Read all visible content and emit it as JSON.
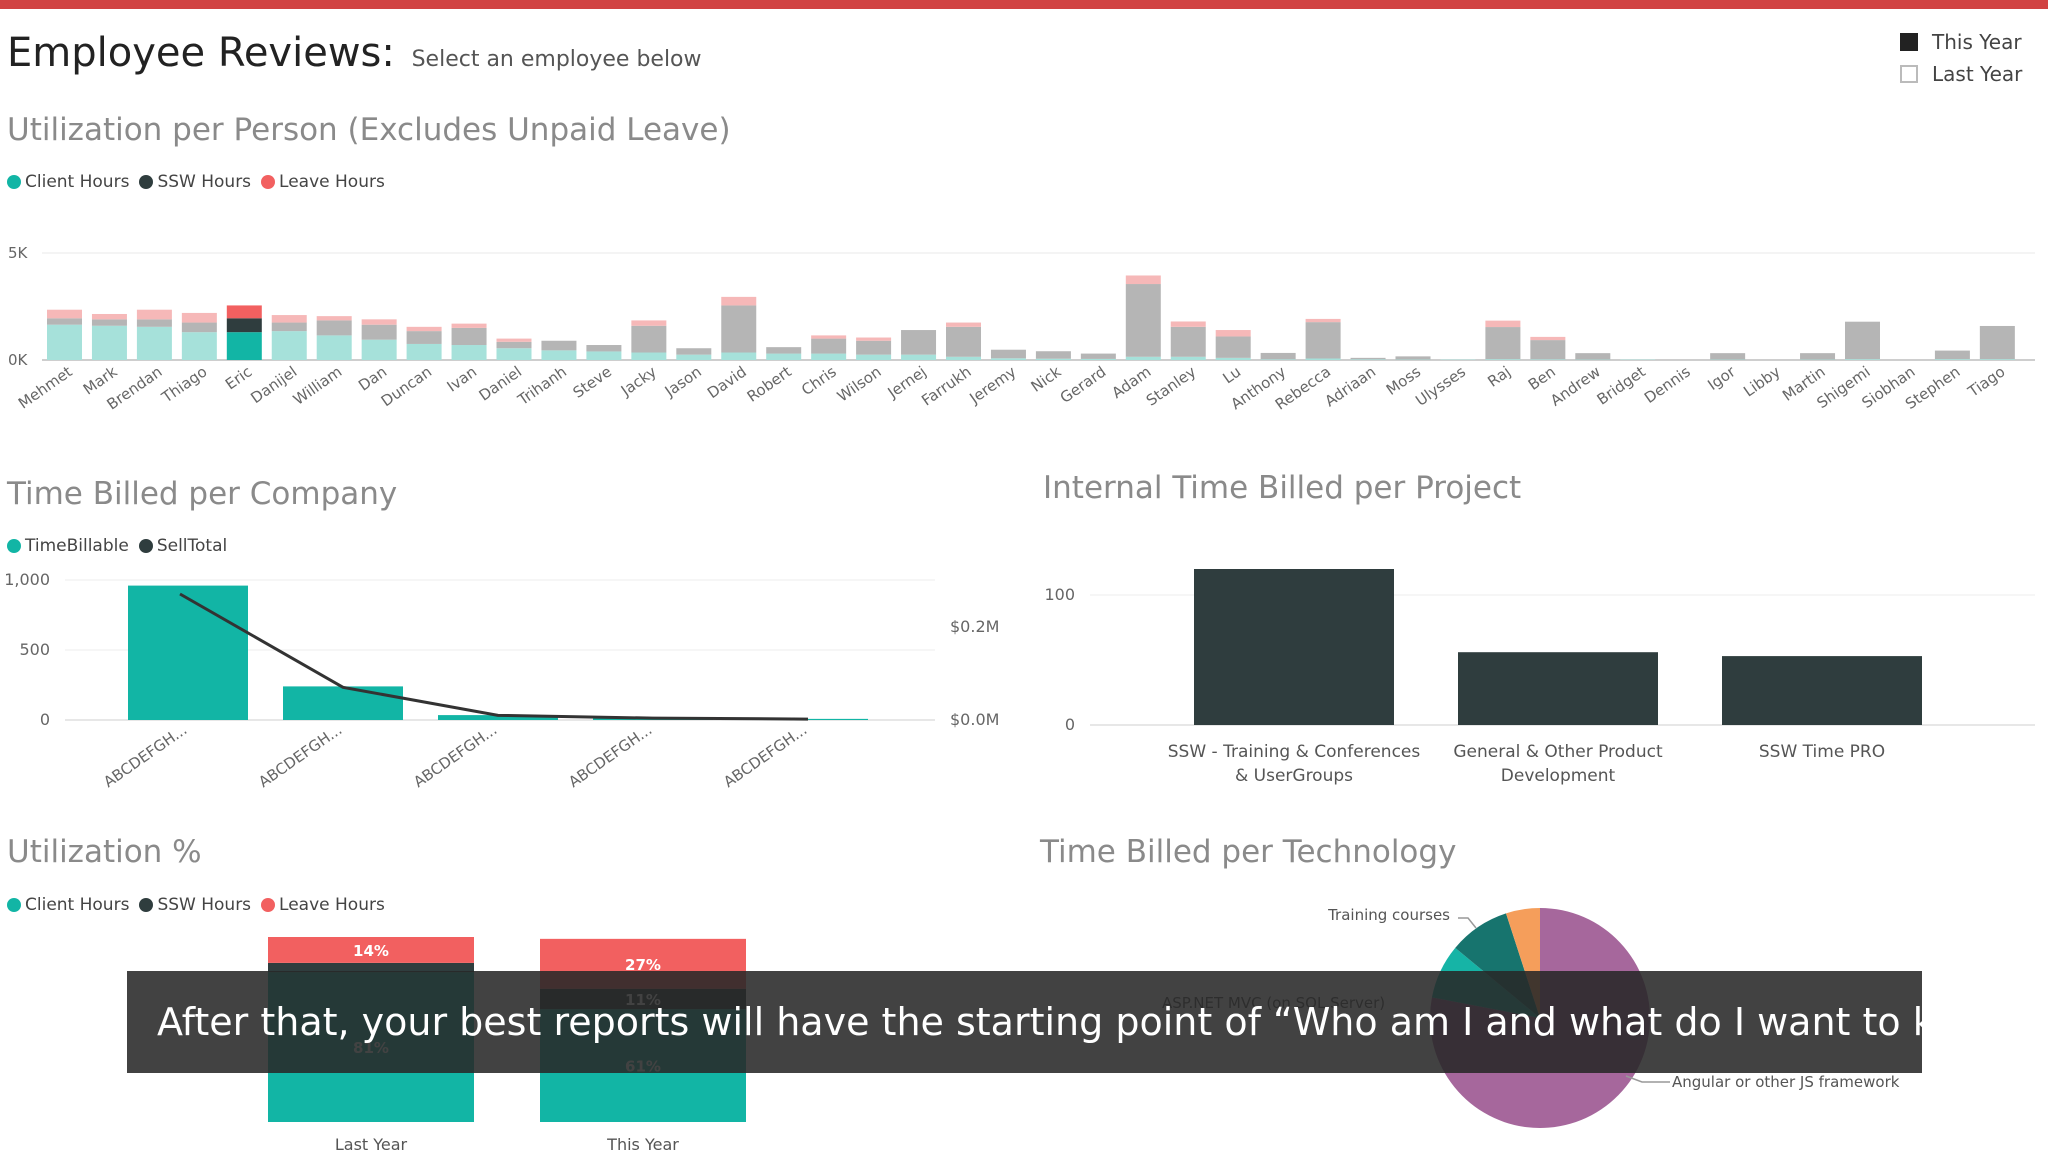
{
  "colors": {
    "accent_bar": "#d14343",
    "client": "#12b5a5",
    "client_light": "#a6e1da",
    "ssw": "#2f3d3e",
    "ssw_light": "#b5b5b5",
    "leave": "#f26060",
    "leave_light": "#f6b8b8",
    "pie_purple": "#a6679c",
    "pie_teal_dark": "#17746e",
    "pie_teal": "#16b4a6",
    "pie_orange": "#f59e5b"
  },
  "header": {
    "title": "Employee Reviews:",
    "subtitle": "Select an employee below"
  },
  "year_toggle": [
    {
      "label": "This Year",
      "selected": true
    },
    {
      "label": "Last Year",
      "selected": false
    }
  ],
  "legend_hours": [
    "Client Hours",
    "SSW Hours",
    "Leave Hours"
  ],
  "legend_company": [
    "TimeBillable",
    "SellTotal"
  ],
  "caption": "After that, your best reports will have the starting point of “Who am I and what do I want to know?”",
  "chart_data": [
    {
      "type": "bar",
      "title": "Utilization per Person (Excludes Unpaid Leave)",
      "stacked": true,
      "categories": [
        "Mehmet",
        "Mark",
        "Brendan",
        "Thiago",
        "Eric",
        "Danijel",
        "William",
        "Dan",
        "Duncan",
        "Ivan",
        "Daniel",
        "Trihanh",
        "Steve",
        "Jacky",
        "Jason",
        "David",
        "Robert",
        "Chris",
        "Wilson",
        "Jernej",
        "Farrukh",
        "Jeremy",
        "Nick",
        "Gerard",
        "Adam",
        "Stanley",
        "Lu",
        "Anthony",
        "Rebecca",
        "Adriaan",
        "Moss",
        "Ulysses",
        "Raj",
        "Ben",
        "Andrew",
        "Bridget",
        "Dennis",
        "Igor",
        "Libby",
        "Martin",
        "Shigemi",
        "Siobhan",
        "Stephen",
        "Tiago"
      ],
      "series": [
        {
          "name": "Client Hours",
          "values": [
            1650,
            1600,
            1550,
            1300,
            1300,
            1350,
            1150,
            950,
            750,
            700,
            550,
            450,
            400,
            350,
            250,
            350,
            300,
            300,
            250,
            250,
            150,
            80,
            60,
            50,
            150,
            150,
            100,
            30,
            70,
            30,
            20,
            20,
            40,
            30,
            20,
            20,
            0,
            20,
            0,
            20,
            40,
            0,
            40,
            40
          ]
        },
        {
          "name": "SSW Hours",
          "values": [
            300,
            300,
            350,
            450,
            650,
            400,
            700,
            700,
            600,
            800,
            300,
            450,
            300,
            1250,
            300,
            2200,
            300,
            700,
            650,
            1150,
            1400,
            400,
            350,
            250,
            3400,
            1400,
            1000,
            300,
            1700,
            70,
            150,
            0,
            1500,
            900,
            300,
            0,
            0,
            300,
            0,
            300,
            1750,
            0,
            400,
            1550
          ]
        },
        {
          "name": "Leave Hours",
          "values": [
            400,
            250,
            450,
            450,
            600,
            350,
            200,
            250,
            200,
            200,
            150,
            0,
            0,
            250,
            0,
            400,
            0,
            150,
            150,
            0,
            200,
            0,
            0,
            0,
            400,
            250,
            300,
            0,
            150,
            0,
            0,
            0,
            300,
            150,
            0,
            0,
            0,
            0,
            0,
            0,
            0,
            0,
            0,
            0
          ]
        }
      ],
      "highlighted_category": "Eric",
      "ylim": [
        0,
        5000
      ],
      "yticks": [
        "5K",
        "0K"
      ]
    },
    {
      "type": "bar",
      "title": "Time Billed per Company",
      "categories": [
        "ABCDEFGH...",
        "ABCDEFGH...",
        "ABCDEFGH...",
        "ABCDEFGH...",
        "ABCDEFGH..."
      ],
      "series": [
        {
          "name": "TimeBillable",
          "values": [
            960,
            240,
            35,
            15,
            8
          ]
        },
        {
          "name": "SellTotal",
          "values": [
            0.27,
            0.07,
            0.01,
            0.004,
            0.002
          ],
          "axis": "right"
        }
      ],
      "yticks_left": [
        "1,000",
        "500",
        "0"
      ],
      "yticks_right": [
        "$0.2M",
        "$0.0M"
      ],
      "ylim": [
        0,
        1000
      ]
    },
    {
      "type": "bar",
      "title": "Internal Time Billed per Project",
      "categories": [
        "SSW - Training & Conferences & UserGroups",
        "General & Other Product Development",
        "SSW Time PRO"
      ],
      "category_lines": [
        [
          "SSW - Training & Conferences",
          "& UserGroups"
        ],
        [
          "General & Other Product",
          "Development"
        ],
        [
          "SSW Time PRO"
        ]
      ],
      "values": [
        120,
        56,
        53
      ],
      "yticks": [
        "100",
        "0"
      ],
      "ylim": [
        0,
        120
      ]
    },
    {
      "type": "bar",
      "title": "Utilization %",
      "stacked": true,
      "categories": [
        "Last Year",
        "This Year"
      ],
      "series": [
        {
          "name": "Client Hours",
          "values": [
            81,
            61
          ],
          "labels": [
            "81%",
            "61%"
          ]
        },
        {
          "name": "SSW Hours",
          "values": [
            5,
            11
          ],
          "labels": [
            "",
            "11%"
          ]
        },
        {
          "name": "Leave Hours",
          "values": [
            14,
            27
          ],
          "labels": [
            "14%",
            "27%"
          ]
        }
      ]
    },
    {
      "type": "pie",
      "title": "Time Billed per Technology",
      "labels": [
        "Angular or other JS framework",
        "ASP.NET MVC (on SQL Server)",
        "Training courses"
      ],
      "slices": [
        {
          "label": "Angular or other JS framework",
          "value": 78,
          "color": "#a6679c"
        },
        {
          "label": "ASP.NET MVC (on SQL Server)",
          "value": 8,
          "color": "#16b4a6"
        },
        {
          "label": "",
          "value": 9,
          "color": "#17746e"
        },
        {
          "label": "Training courses",
          "value": 5,
          "color": "#f59e5b"
        }
      ]
    }
  ]
}
